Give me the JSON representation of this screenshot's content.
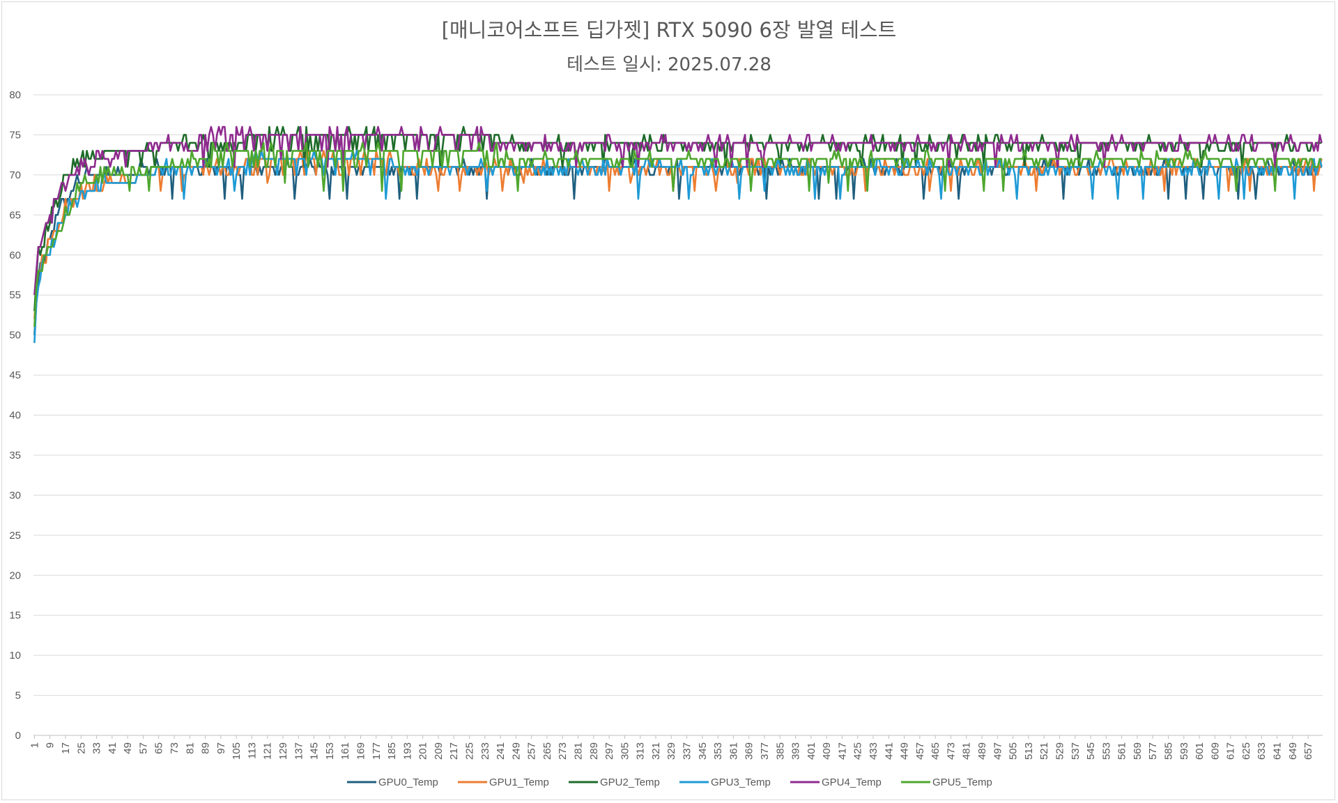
{
  "chart_data": {
    "type": "line",
    "title": "[매니코어소프트 딥가젯] RTX 5090 6장 발열 테스트",
    "subtitle": "테스트 일시: 2025.07.28",
    "xlabel": "",
    "ylabel": "",
    "ylim": [
      0,
      80
    ],
    "yticks": [
      0,
      5,
      10,
      15,
      20,
      25,
      30,
      35,
      40,
      45,
      50,
      55,
      60,
      65,
      70,
      75,
      80
    ],
    "x_count": 664,
    "x_tick_step": 8,
    "grid": true,
    "legend_position": "bottom",
    "series": [
      {
        "name": "GPU0_Temp",
        "color": "#1f5f7f",
        "ramp": [
          [
            1,
            51
          ],
          [
            3,
            57
          ],
          [
            10,
            63
          ],
          [
            17,
            67
          ],
          [
            25,
            70
          ],
          [
            41,
            70
          ],
          [
            69,
            71
          ],
          [
            150,
            71
          ],
          [
            300,
            71
          ],
          [
            664,
            71
          ]
        ],
        "low": [
          70,
          67
        ],
        "spikeEvery": 9
      },
      {
        "name": "GPU1_Temp",
        "color": "#ed7d31",
        "ramp": [
          [
            1,
            53
          ],
          [
            3,
            58
          ],
          [
            10,
            62
          ],
          [
            17,
            66
          ],
          [
            25,
            68
          ],
          [
            49,
            69
          ],
          [
            69,
            71
          ],
          [
            150,
            72
          ],
          [
            220,
            71
          ],
          [
            664,
            71
          ]
        ],
        "low": [
          70,
          68
        ],
        "spikeEvery": 11
      },
      {
        "name": "GPU2_Temp",
        "color": "#1e6b2a",
        "ramp": [
          [
            1,
            54
          ],
          [
            3,
            60
          ],
          [
            10,
            65
          ],
          [
            17,
            70
          ],
          [
            25,
            72
          ],
          [
            49,
            73
          ],
          [
            80,
            74
          ],
          [
            140,
            75
          ],
          [
            200,
            75
          ],
          [
            280,
            74
          ],
          [
            664,
            74
          ]
        ],
        "low": [
          73,
          71
        ],
        "spikeEvery": 7
      },
      {
        "name": "GPU3_Temp",
        "color": "#1e9ad6",
        "ramp": [
          [
            1,
            50
          ],
          [
            3,
            57
          ],
          [
            10,
            61
          ],
          [
            17,
            65
          ],
          [
            25,
            68
          ],
          [
            49,
            69
          ],
          [
            69,
            71
          ],
          [
            150,
            72
          ],
          [
            220,
            71
          ],
          [
            664,
            71
          ]
        ],
        "low": [
          70,
          67
        ],
        "spikeEvery": 13
      },
      {
        "name": "GPU4_Temp",
        "color": "#8e2a8e",
        "ramp": [
          [
            1,
            56
          ],
          [
            3,
            61
          ],
          [
            10,
            65
          ],
          [
            17,
            69
          ],
          [
            25,
            71
          ],
          [
            41,
            72
          ],
          [
            49,
            73
          ],
          [
            70,
            74
          ],
          [
            100,
            75
          ],
          [
            200,
            75
          ],
          [
            270,
            74
          ],
          [
            664,
            74
          ]
        ],
        "low": [
          73,
          71
        ],
        "spikeEvery": 8
      },
      {
        "name": "GPU5_Temp",
        "color": "#4ea72e",
        "ramp": [
          [
            1,
            52
          ],
          [
            3,
            58
          ],
          [
            10,
            61
          ],
          [
            17,
            65
          ],
          [
            25,
            69
          ],
          [
            49,
            70
          ],
          [
            69,
            71
          ],
          [
            100,
            73
          ],
          [
            200,
            73
          ],
          [
            280,
            72
          ],
          [
            664,
            72
          ]
        ],
        "low": [
          71,
          68
        ],
        "spikeEvery": 10
      }
    ]
  }
}
